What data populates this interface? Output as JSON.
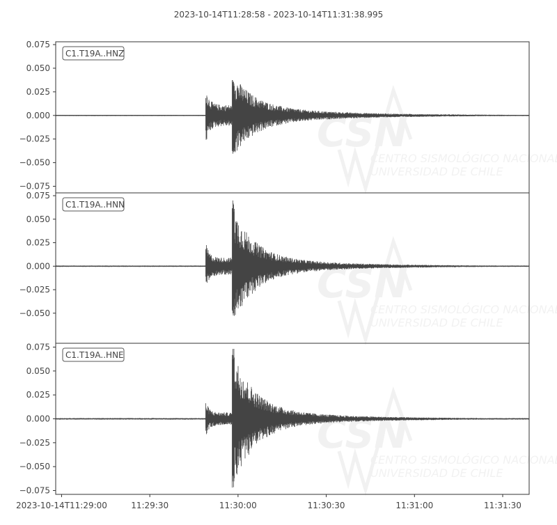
{
  "chart_data": {
    "type": "line",
    "title": "2023-10-14T11:28:58  -  2023-10-14T11:31:38.995",
    "x_axis": {
      "type": "time",
      "range": [
        "2023-10-14T11:28:58",
        "2023-10-14T11:31:38.995"
      ],
      "tick_labels": [
        "2023-10-14T11:29:00",
        "11:29:30",
        "11:30:00",
        "11:30:30",
        "11:31:00",
        "11:31:30"
      ],
      "tick_seconds": [
        2,
        32,
        62,
        92,
        122,
        152
      ]
    },
    "grid": false,
    "color": "#444444",
    "panels": [
      {
        "name": "C1.T19A..HNZ",
        "ylim": [
          -0.082,
          0.078
        ],
        "ytick_values": [
          0.075,
          0.05,
          0.025,
          0.0,
          -0.025,
          -0.05,
          -0.075
        ],
        "ytick_labels": [
          "0.075",
          "0.050",
          "0.025",
          "0.000",
          "−0.025",
          "−0.050",
          "−0.075"
        ],
        "p_onset_time": "2023-10-14T11:29:49",
        "s_onset_time": "2023-10-14T11:29:58",
        "p_peak": 0.032,
        "max": 0.038,
        "min": -0.042,
        "noise": 0.0006
      },
      {
        "name": "C1.T19A..HNN",
        "ylim": [
          -0.082,
          0.078
        ],
        "ytick_values": [
          0.075,
          0.05,
          0.025,
          0.0,
          -0.025,
          -0.05
        ],
        "ytick_labels": [
          "0.075",
          "0.050",
          "0.025",
          "0.000",
          "−0.025",
          "−0.050"
        ],
        "p_onset_time": "2023-10-14T11:29:49",
        "s_onset_time": "2023-10-14T11:29:58",
        "p_peak": 0.026,
        "max": 0.071,
        "min": -0.054,
        "noise": 0.0007
      },
      {
        "name": "C1.T19A..HNE",
        "ylim": [
          -0.079,
          0.079
        ],
        "ytick_values": [
          0.075,
          0.05,
          0.025,
          0.0,
          -0.025,
          -0.05,
          -0.075
        ],
        "ytick_labels": [
          "0.075",
          "0.050",
          "0.025",
          "0.000",
          "−0.025",
          "−0.050",
          "−0.075"
        ],
        "p_onset_time": "2023-10-14T11:29:49",
        "s_onset_time": "2023-10-14T11:29:58",
        "p_peak": 0.019,
        "max": 0.077,
        "min": -0.072,
        "noise": 0.0008
      }
    ]
  },
  "watermark": {
    "logo_text": "CSN",
    "line1": "CENTRO SISMOLÓGICO NACIONAL",
    "line2": "UNIVERSIDAD DE CHILE"
  }
}
